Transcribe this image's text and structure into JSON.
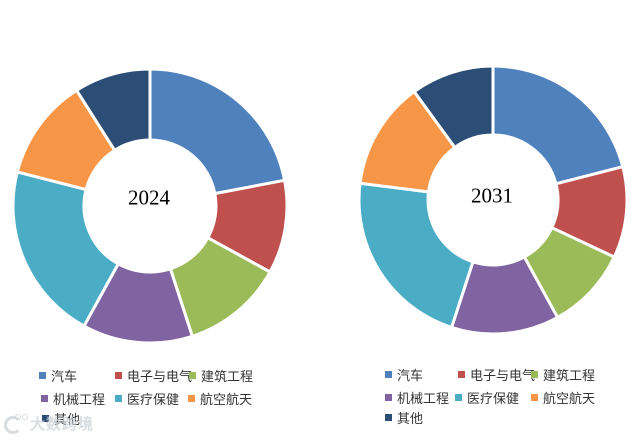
{
  "chart_data": [
    {
      "type": "pie",
      "subtype": "donut",
      "title": "2024",
      "labels": [
        "汽车",
        "电子与电气",
        "建筑工程",
        "机械工程",
        "医疗保健",
        "航空航天",
        "其他"
      ],
      "values": [
        22,
        11,
        12,
        13,
        21,
        12,
        9
      ],
      "unit": "%",
      "colors": [
        "#4F81BD",
        "#C0504D",
        "#9BBB59",
        "#8064A2",
        "#4BACC6",
        "#F79646",
        "#2C4D75"
      ],
      "start_angle_deg": 0,
      "direction": "clockwise",
      "hole_ratio": 0.48,
      "legend_position": "bottom"
    },
    {
      "type": "pie",
      "subtype": "donut",
      "title": "2031",
      "labels": [
        "汽车",
        "电子与电气",
        "建筑工程",
        "机械工程",
        "医疗保健",
        "航空航天",
        "其他"
      ],
      "values": [
        21,
        11,
        10,
        13,
        22,
        13,
        10
      ],
      "unit": "%",
      "colors": [
        "#4F81BD",
        "#C0504D",
        "#9BBB59",
        "#8064A2",
        "#4BACC6",
        "#F79646",
        "#2C4D75"
      ],
      "start_angle_deg": 0,
      "direction": "clockwise",
      "hole_ratio": 0.48,
      "legend_position": "bottom"
    }
  ],
  "watermark": {
    "text": "大数跨境"
  }
}
